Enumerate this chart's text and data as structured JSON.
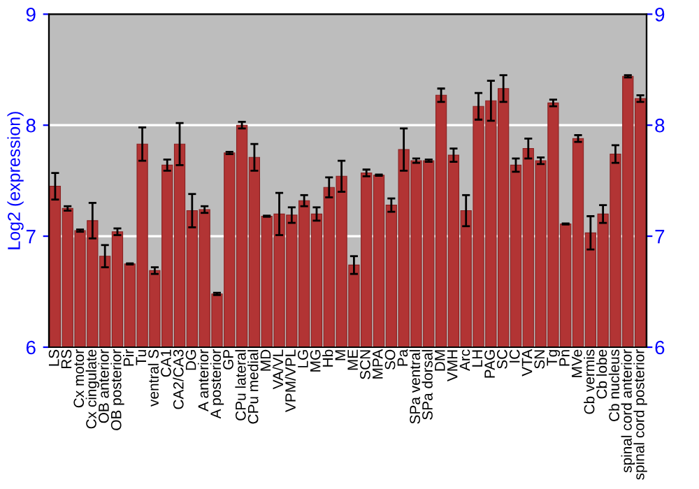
{
  "chart_data": {
    "type": "bar",
    "ylabel": "Log2 (expression)",
    "categories": [
      "LS",
      "RS",
      "Cx motor",
      "Cx cingulate",
      "OB anterior",
      "OB posterior",
      "Pir",
      "Tu",
      "ventral S",
      "CA1",
      "CA2/CA3",
      "DG",
      "A anterior",
      "A posterior",
      "GP",
      "CPu lateral",
      "CPu medial",
      "MD",
      "VA/VL",
      "VPM/VPL",
      "LG",
      "MG",
      "Hb",
      "M",
      "ME",
      "SCN",
      "MPA",
      "SO",
      "Pa",
      "SPa ventral",
      "SPa dorsal",
      "DM",
      "VMH",
      "Arc",
      "LH",
      "PAG",
      "SC",
      "IC",
      "VTA",
      "SN",
      "Tg",
      "Pn",
      "MVe",
      "Cb vermis",
      "Cb lobe",
      "Cb nucleus",
      "spinal cord anterior",
      "spinal cord posterior"
    ],
    "series": [
      {
        "color": "#b23434",
        "values": [
          7.45,
          7.25,
          7.05,
          7.14,
          6.82,
          7.04,
          6.75,
          7.83,
          6.69,
          7.64,
          7.83,
          7.23,
          7.24,
          6.48,
          7.75,
          8.0,
          7.71,
          7.18,
          7.2,
          7.19,
          7.32,
          7.2,
          7.44,
          7.54,
          6.74,
          7.57,
          7.55,
          7.28,
          7.78,
          7.68,
          7.68,
          8.27,
          7.73,
          7.23,
          8.17,
          8.22,
          8.33,
          7.64,
          7.79,
          7.68,
          8.2,
          7.11,
          7.88,
          7.03,
          7.2,
          7.74,
          8.44,
          8.24
        ],
        "errors": [
          0.12,
          0.02,
          0.01,
          0.16,
          0.1,
          0.03,
          0.005,
          0.15,
          0.03,
          0.05,
          0.19,
          0.15,
          0.03,
          0.01,
          0.01,
          0.03,
          0.12,
          0.005,
          0.19,
          0.07,
          0.05,
          0.06,
          0.09,
          0.14,
          0.08,
          0.03,
          0.005,
          0.06,
          0.19,
          0.02,
          0.01,
          0.06,
          0.06,
          0.14,
          0.12,
          0.18,
          0.12,
          0.06,
          0.09,
          0.03,
          0.03,
          0.005,
          0.03,
          0.15,
          0.08,
          0.08,
          0.01,
          0.03
        ]
      }
    ],
    "ylim": [
      6,
      9
    ],
    "yticks": [
      6,
      7,
      8,
      9
    ],
    "y2lim": [
      6,
      9
    ],
    "y2ticks": [
      6,
      7,
      8,
      9
    ],
    "grid": "y"
  }
}
